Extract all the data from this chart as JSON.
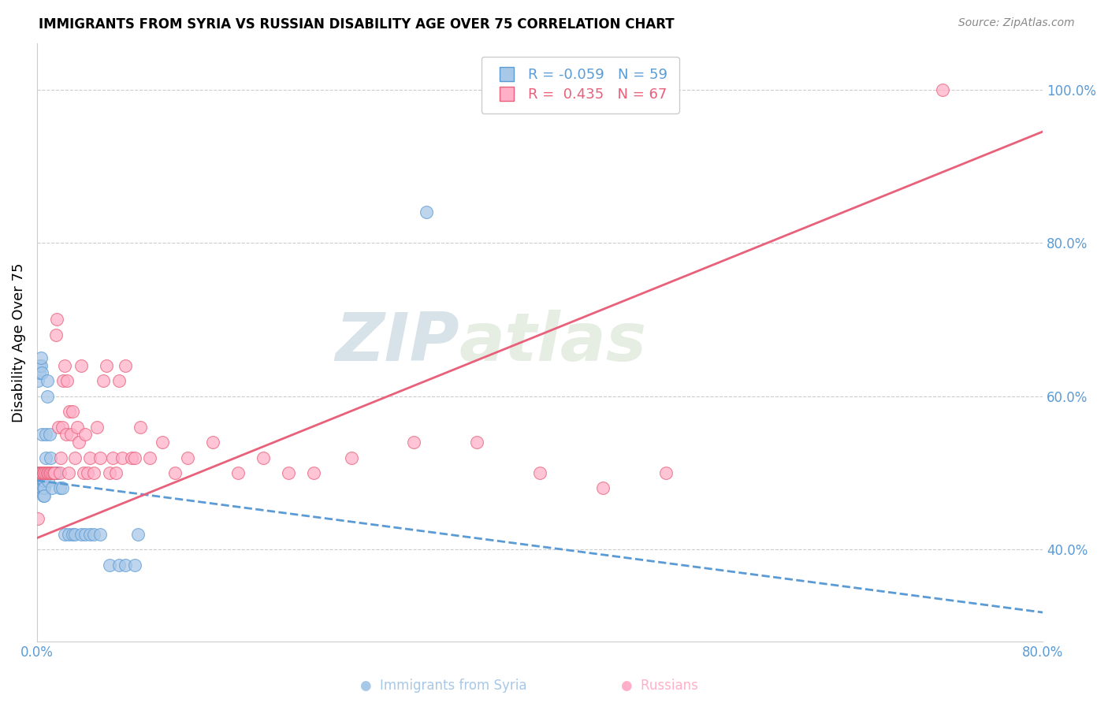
{
  "title": "IMMIGRANTS FROM SYRIA VS RUSSIAN DISABILITY AGE OVER 75 CORRELATION CHART",
  "source": "Source: ZipAtlas.com",
  "ylabel": "Disability Age Over 75",
  "r_syria": -0.059,
  "n_syria": 59,
  "r_russia": 0.435,
  "n_russia": 67,
  "color_syria": "#A8C8E8",
  "color_russia": "#FFB0C8",
  "line_color_syria": "#5B9BD5",
  "line_color_russia": "#E8607A",
  "watermark_zip": "ZIP",
  "watermark_atlas": "atlas",
  "xlim": [
    0.0,
    0.8
  ],
  "ylim": [
    0.28,
    1.06
  ],
  "right_yticks": [
    0.4,
    0.6,
    0.8,
    1.0
  ],
  "right_yticklabels": [
    "40.0%",
    "60.0%",
    "80.0%",
    "100.0%"
  ],
  "syria_line_x": [
    0.0,
    0.8
  ],
  "syria_line_y": [
    0.49,
    0.318
  ],
  "russia_line_x": [
    0.0,
    0.8
  ],
  "russia_line_y": [
    0.415,
    0.945
  ],
  "syria_x": [
    0.001,
    0.001,
    0.001,
    0.001,
    0.002,
    0.002,
    0.002,
    0.002,
    0.003,
    0.003,
    0.003,
    0.003,
    0.003,
    0.004,
    0.004,
    0.004,
    0.004,
    0.004,
    0.005,
    0.005,
    0.005,
    0.005,
    0.006,
    0.006,
    0.006,
    0.006,
    0.007,
    0.007,
    0.007,
    0.008,
    0.008,
    0.009,
    0.009,
    0.01,
    0.01,
    0.011,
    0.012,
    0.012,
    0.013,
    0.014,
    0.015,
    0.016,
    0.018,
    0.02,
    0.022,
    0.025,
    0.028,
    0.03,
    0.035,
    0.038,
    0.042,
    0.045,
    0.05,
    0.058,
    0.065,
    0.07,
    0.078,
    0.08,
    0.31
  ],
  "syria_y": [
    0.5,
    0.5,
    0.49,
    0.62,
    0.5,
    0.49,
    0.63,
    0.64,
    0.5,
    0.49,
    0.48,
    0.64,
    0.65,
    0.5,
    0.49,
    0.48,
    0.63,
    0.55,
    0.5,
    0.49,
    0.48,
    0.47,
    0.5,
    0.49,
    0.48,
    0.47,
    0.55,
    0.52,
    0.5,
    0.6,
    0.62,
    0.5,
    0.49,
    0.55,
    0.5,
    0.52,
    0.5,
    0.48,
    0.5,
    0.5,
    0.5,
    0.5,
    0.48,
    0.48,
    0.42,
    0.42,
    0.42,
    0.42,
    0.42,
    0.42,
    0.42,
    0.42,
    0.42,
    0.38,
    0.38,
    0.38,
    0.38,
    0.42,
    0.84
  ],
  "russia_x": [
    0.001,
    0.002,
    0.003,
    0.004,
    0.005,
    0.005,
    0.006,
    0.007,
    0.008,
    0.009,
    0.01,
    0.011,
    0.012,
    0.013,
    0.014,
    0.015,
    0.016,
    0.017,
    0.018,
    0.019,
    0.02,
    0.021,
    0.022,
    0.023,
    0.024,
    0.025,
    0.026,
    0.027,
    0.028,
    0.03,
    0.032,
    0.033,
    0.035,
    0.037,
    0.038,
    0.04,
    0.042,
    0.045,
    0.048,
    0.05,
    0.053,
    0.055,
    0.058,
    0.06,
    0.063,
    0.065,
    0.068,
    0.07,
    0.075,
    0.078,
    0.082,
    0.09,
    0.1,
    0.11,
    0.12,
    0.14,
    0.16,
    0.18,
    0.2,
    0.22,
    0.25,
    0.3,
    0.35,
    0.4,
    0.45,
    0.5,
    0.72
  ],
  "russia_y": [
    0.44,
    0.5,
    0.5,
    0.5,
    0.5,
    0.5,
    0.5,
    0.5,
    0.5,
    0.5,
    0.5,
    0.5,
    0.5,
    0.5,
    0.5,
    0.68,
    0.7,
    0.56,
    0.5,
    0.52,
    0.56,
    0.62,
    0.64,
    0.55,
    0.62,
    0.5,
    0.58,
    0.55,
    0.58,
    0.52,
    0.56,
    0.54,
    0.64,
    0.5,
    0.55,
    0.5,
    0.52,
    0.5,
    0.56,
    0.52,
    0.62,
    0.64,
    0.5,
    0.52,
    0.5,
    0.62,
    0.52,
    0.64,
    0.52,
    0.52,
    0.56,
    0.52,
    0.54,
    0.5,
    0.52,
    0.54,
    0.5,
    0.52,
    0.5,
    0.5,
    0.52,
    0.54,
    0.54,
    0.5,
    0.48,
    0.5,
    1.0
  ]
}
